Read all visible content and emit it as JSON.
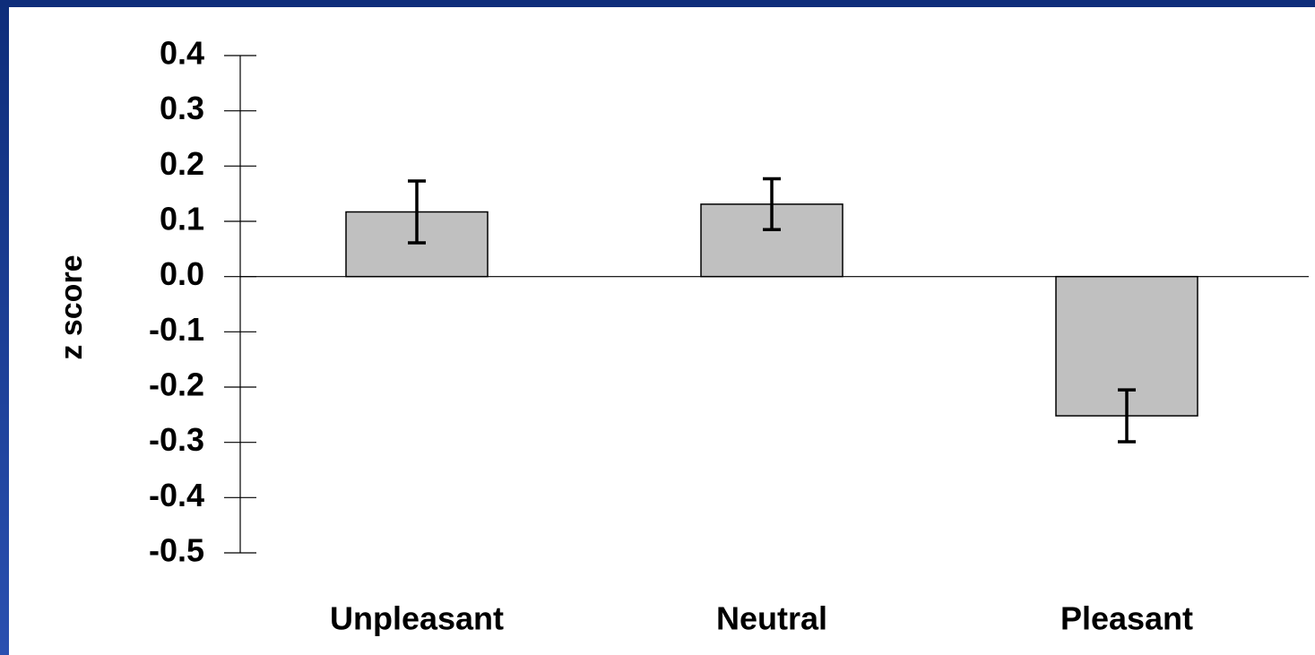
{
  "chart_data": {
    "type": "bar",
    "ylabel": "z score",
    "categories": [
      "Unpleasant",
      "Neutral",
      "Pleasant"
    ],
    "values": [
      0.117,
      0.131,
      -0.252
    ],
    "errors": [
      0.056,
      0.046,
      0.047
    ],
    "color": "#c0c0c0",
    "ylim": [
      -0.5,
      0.4
    ],
    "yticks": [
      0.4,
      0.3,
      0.2,
      0.1,
      {
        "value": 0,
        "label": "0.0"
      },
      -0.1,
      -0.2,
      -0.3,
      -0.4,
      -0.5
    ]
  }
}
